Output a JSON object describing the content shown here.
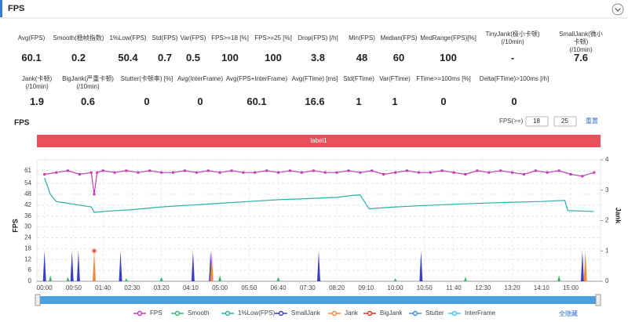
{
  "header": {
    "title": "FPS"
  },
  "stats": [
    [
      {
        "label": "Avg(FPS)",
        "value": "60.1"
      },
      {
        "label": "Smooth(稳帧指数)",
        "value": "0.2"
      },
      {
        "label": "1%Low(FPS)",
        "value": "50.4"
      },
      {
        "label": "Std(FPS)",
        "value": "0.7"
      },
      {
        "label": "Var(FPS)",
        "value": "0.5"
      },
      {
        "label": "FPS>=18 [%]",
        "value": "100"
      },
      {
        "label": "FPS>=25 [%]",
        "value": "100"
      },
      {
        "label": "Drop(FPS) [/h]",
        "value": "3.8"
      },
      {
        "label": "Min(FPS)",
        "value": "48"
      },
      {
        "label": "Median(FPS)",
        "value": "60"
      },
      {
        "label": "MedRange(FPS)[%]",
        "value": "100"
      },
      {
        "label": "TinyJank(极小卡顿)\n(/10min)",
        "value": "-"
      },
      {
        "label": "SmallJank(微小卡顿)\n(/10min)",
        "value": "7.6"
      }
    ],
    [
      {
        "label": "Jank(卡顿)\n(/10min)",
        "value": "1.9"
      },
      {
        "label": "BigJank(严重卡顿)\n(/10min)",
        "value": "0.6"
      },
      {
        "label": "Stutter(卡顿率) [%]",
        "value": "0"
      },
      {
        "label": "Avg(InterFrame)",
        "value": "0"
      },
      {
        "label": "Avg(FPS+InterFrame)",
        "value": "60.1"
      },
      {
        "label": "Avg(FTime) [ms]",
        "value": "16.6"
      },
      {
        "label": "Std(FTime)",
        "value": "1"
      },
      {
        "label": "Var(FTime)",
        "value": "1"
      },
      {
        "label": "FTime>=100ms [%]",
        "value": "0"
      },
      {
        "label": "Delta(FTime)>100ms [/h]",
        "value": "0"
      }
    ]
  ],
  "chart_data": {
    "type": "line",
    "title": "FPS",
    "threshold_label": "FPS(>=)",
    "thresholds": [
      "18",
      "25"
    ],
    "reset": "重置",
    "band_label": "label1",
    "hide_all": "全隐藏",
    "y_label": "FPS",
    "y2_label": "Jank",
    "grid": true,
    "xlim": [
      -13,
      951
    ],
    "xticks": [
      {
        "value": 0,
        "label": "00:00"
      },
      {
        "value": 50,
        "label": "00:50"
      },
      {
        "value": 100,
        "label": "01:40"
      },
      {
        "value": 150,
        "label": "02:30"
      },
      {
        "value": 200,
        "label": "03:20"
      },
      {
        "value": 250,
        "label": "04:10"
      },
      {
        "value": 300,
        "label": "05:00"
      },
      {
        "value": 350,
        "label": "05:50"
      },
      {
        "value": 400,
        "label": "06:40"
      },
      {
        "value": 450,
        "label": "07:30"
      },
      {
        "value": 500,
        "label": "08:20"
      },
      {
        "value": 550,
        "label": "09:10"
      },
      {
        "value": 600,
        "label": "10:00"
      },
      {
        "value": 650,
        "label": "10:50"
      },
      {
        "value": 700,
        "label": "11:40"
      },
      {
        "value": 750,
        "label": "12:30"
      },
      {
        "value": 800,
        "label": "13:20"
      },
      {
        "value": 850,
        "label": "14:10"
      },
      {
        "value": 900,
        "label": "15:00"
      }
    ],
    "ylim": [
      0,
      67
    ],
    "yticks": [
      0,
      6,
      12,
      18,
      24,
      30,
      36,
      42,
      48,
      54,
      61
    ],
    "y2lim": [
      0,
      4
    ],
    "y2ticks": [
      0,
      1,
      2,
      3,
      4
    ],
    "series": [
      {
        "name": "FPS",
        "color": "#c53cb8",
        "kind": "line",
        "x": [
          0,
          20,
          40,
          60,
          80,
          85,
          90,
          100,
          120,
          140,
          160,
          180,
          200,
          220,
          240,
          260,
          280,
          300,
          320,
          340,
          360,
          380,
          400,
          420,
          440,
          460,
          480,
          500,
          520,
          540,
          560,
          580,
          600,
          620,
          640,
          660,
          680,
          700,
          720,
          740,
          760,
          780,
          800,
          820,
          840,
          860,
          880,
          900,
          920,
          940
        ],
        "values": [
          59,
          60,
          61,
          59,
          60,
          48,
          60,
          61,
          60,
          61,
          60,
          61,
          60,
          60,
          61,
          60,
          61,
          60,
          61,
          60,
          60,
          61,
          60,
          61,
          60,
          61,
          60,
          60,
          61,
          60,
          61,
          59,
          60,
          61,
          60,
          60,
          61,
          60,
          59,
          61,
          60,
          61,
          60,
          59,
          61,
          60,
          61,
          59,
          58,
          60
        ]
      },
      {
        "name": "Smooth",
        "color": "#3cb371",
        "kind": "spike",
        "axis": "y2",
        "x": [
          10,
          40,
          140,
          200,
          300,
          400,
          470,
          600,
          720,
          880
        ],
        "values": [
          0.2,
          0.15,
          0.1,
          0.15,
          0.2,
          0.15,
          0.2,
          0.1,
          0.15,
          0.2
        ]
      },
      {
        "name": "1%Low(FPS)",
        "color": "#2bb0a6",
        "kind": "line",
        "x": [
          0,
          10,
          20,
          40,
          60,
          80,
          85,
          100,
          150,
          200,
          250,
          300,
          350,
          400,
          450,
          500,
          530,
          540,
          555,
          600,
          650,
          700,
          750,
          800,
          850,
          880,
          890,
          895,
          940
        ],
        "values": [
          57,
          48,
          44,
          43,
          42,
          41,
          38,
          38.5,
          39.5,
          41,
          42,
          43,
          44,
          45,
          45.6,
          46.3,
          47.5,
          47.6,
          40,
          41,
          41.8,
          42.5,
          43.1,
          43.6,
          44,
          44.5,
          44.6,
          39,
          38.5
        ]
      },
      {
        "name": "SmallJank",
        "color": "#3b3fc4",
        "kind": "spike",
        "axis": "y2",
        "x": [
          0,
          47,
          58,
          130,
          254,
          284,
          469,
          644,
          920
        ],
        "values": [
          1,
          1,
          1,
          1,
          1,
          1,
          1,
          1,
          1
        ]
      },
      {
        "name": "Jank",
        "color": "#f08a3a",
        "kind": "spike",
        "axis": "y2",
        "x": [
          85,
          286,
          925
        ],
        "values": [
          1,
          1,
          1
        ]
      },
      {
        "name": "BigJank",
        "color": "#d9342b",
        "kind": "dot",
        "axis": "y2",
        "x": [
          85
        ],
        "values": [
          1
        ]
      },
      {
        "name": "Stutter",
        "color": "#3d8ee0",
        "kind": "line",
        "x": [],
        "values": []
      },
      {
        "name": "InterFrame",
        "color": "#3cc8e8",
        "kind": "line",
        "x": [],
        "values": []
      }
    ]
  }
}
